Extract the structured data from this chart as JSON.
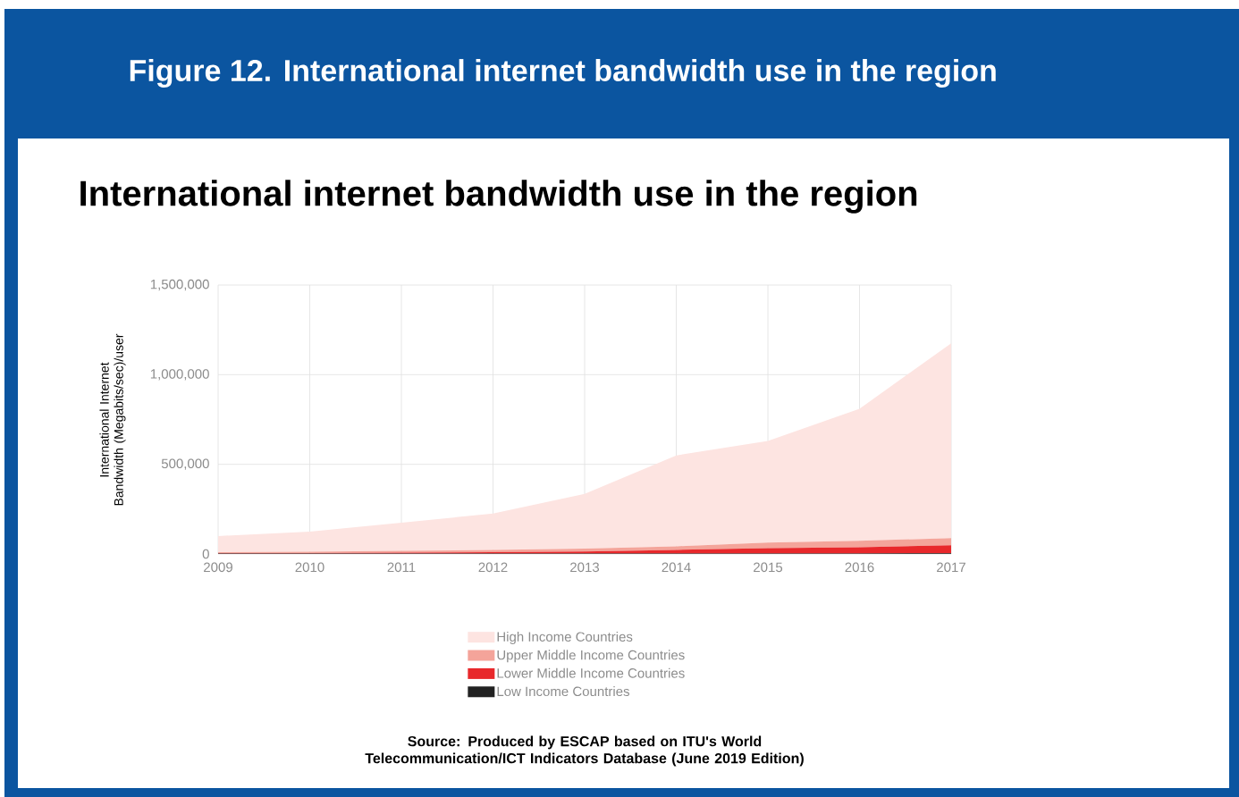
{
  "chart_data": {
    "type": "area",
    "title": "Figure 12. International internet bandwidth use in the region",
    "subtitle": "International internet bandwidth use in the region",
    "ylabel": "International Internet Bandwidth (Megabits/sec)/user",
    "annotations": [
      "Source: Produced by ESCAP based on ITU's World Telecommunication/ICT Indicators Database (June 2019 Edition)"
    ],
    "x": [
      2009,
      2010,
      2011,
      2012,
      2013,
      2014,
      2015,
      2016,
      2017
    ],
    "xlim": [
      2009,
      2017
    ],
    "xticks": [
      2009,
      2010,
      2011,
      2012,
      2013,
      2014,
      2015,
      2016,
      2017
    ],
    "ylim": [
      0,
      1500000
    ],
    "yticks": [
      0,
      {
        "value": 500000,
        "label": "500,000"
      },
      {
        "value": 1000000,
        "label": "1,000,000"
      },
      {
        "value": 1500000,
        "label": "1,500,000"
      }
    ],
    "stacked": true,
    "grid": true,
    "legend": "bottom",
    "series": [
      {
        "name": "Low Income Countries",
        "color": "#222222",
        "values": [
          3000,
          2000,
          2000,
          2000,
          2000,
          3000,
          3000,
          3000,
          4000
        ]
      },
      {
        "name": "Lower Middle Income Countries",
        "color": "#e8282b",
        "values": [
          2000,
          3000,
          5000,
          8000,
          12000,
          20000,
          30000,
          35000,
          45000
        ]
      },
      {
        "name": "Upper Middle Income Countries",
        "color": "#f4a49a",
        "values": [
          5000,
          7000,
          10000,
          12000,
          16000,
          20000,
          30000,
          35000,
          40000
        ]
      },
      {
        "name": "High Income Countries",
        "color": "#fde4e1",
        "values": [
          90000,
          113000,
          158000,
          203000,
          305000,
          507000,
          567000,
          737000,
          1086000
        ]
      }
    ]
  }
}
